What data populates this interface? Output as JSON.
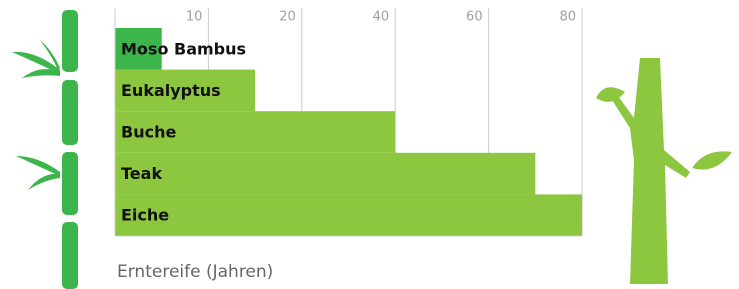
{
  "chart_data": {
    "type": "bar",
    "orientation": "horizontal",
    "categories": [
      "Moso Bambus",
      "Eukalyptus",
      "Buche",
      "Teak",
      "Eiche"
    ],
    "values": [
      5,
      15,
      40,
      70,
      80
    ],
    "colors": [
      "#3cb54a",
      "#8dc63f",
      "#8dc63f",
      "#8dc63f",
      "#8dc63f"
    ],
    "xlim": [
      0,
      80
    ],
    "xticks": [
      10,
      20,
      40,
      60,
      80
    ],
    "xlabel": "Erntereife (Jahren)",
    "grid": true
  }
}
